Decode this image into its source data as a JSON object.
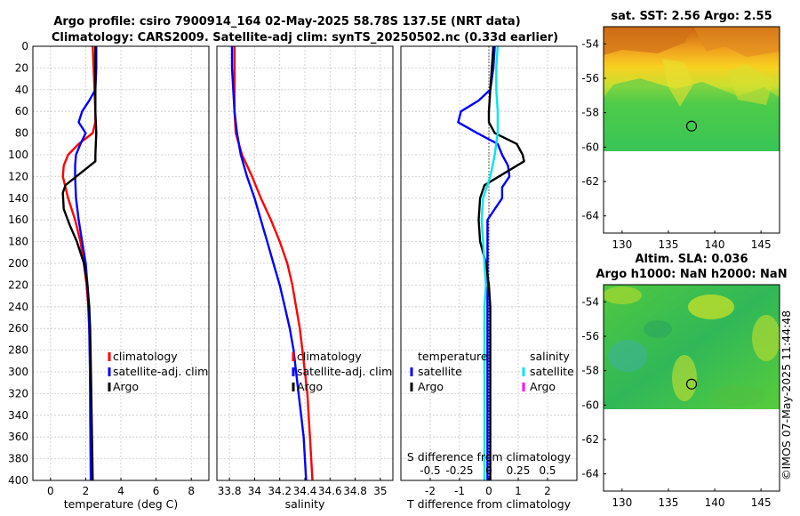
{
  "titles": {
    "line1": "Argo profile: csiro 7900914_164 02-May-2025 58.78S 137.5E (NRT data)",
    "line2": "Climatology: CARS2009. Satellite-adj clim: synTS_20250502.nc (0.33d earlier)",
    "map1": "sat. SST: 2.56 Argo: 2.55",
    "map2_line1": "Altim. SLA: 0.036",
    "map2_line2": "Argo h1000: NaN h2000: NaN",
    "side_text": "©IMOS 07-May-2025 11:44:48"
  },
  "colors": {
    "climatology": "#ff0000",
    "satellite": "#0000ff",
    "argo": "#000000",
    "sat_salinity": "#00e5ee",
    "argo_salinity": "#ff00ff"
  },
  "chart_data": [
    {
      "name": "temperature",
      "type": "line",
      "xlabel": "temperature (deg C)",
      "xlim": [
        -1,
        9
      ],
      "xticks": [
        0,
        2,
        4,
        6,
        8
      ],
      "ylim": [
        400,
        0
      ],
      "yticks": [
        0,
        20,
        40,
        60,
        80,
        100,
        120,
        140,
        160,
        180,
        200,
        220,
        240,
        260,
        280,
        300,
        320,
        340,
        360,
        380,
        400
      ],
      "legend": {
        "position": "lower-right",
        "items": [
          "climatology",
          "satellite-adj. clim",
          "Argo"
        ]
      },
      "series": [
        {
          "name": "climatology",
          "color": "#ff0000",
          "depth": [
            0,
            20,
            40,
            60,
            70,
            80,
            90,
            100,
            110,
            120,
            140,
            160,
            180,
            200,
            220,
            240,
            260,
            280,
            300,
            320,
            340,
            360,
            380,
            400
          ],
          "values": [
            2.4,
            2.45,
            2.5,
            2.55,
            2.55,
            2.4,
            1.6,
            1.0,
            0.75,
            0.7,
            1.0,
            1.4,
            1.7,
            1.9,
            2.05,
            2.15,
            2.2,
            2.25,
            2.28,
            2.3,
            2.32,
            2.34,
            2.36,
            2.38
          ]
        },
        {
          "name": "satellite-adj. clim",
          "color": "#0000ff",
          "depth": [
            0,
            20,
            40,
            50,
            60,
            70,
            80,
            90,
            100,
            110,
            120,
            140,
            160,
            180,
            200,
            220,
            240,
            260,
            280,
            300,
            320,
            340,
            360,
            380,
            400
          ],
          "values": [
            2.6,
            2.6,
            2.55,
            2.2,
            1.8,
            1.6,
            2.0,
            1.7,
            1.45,
            1.4,
            1.4,
            1.45,
            1.6,
            1.8,
            2.0,
            2.1,
            2.15,
            2.2,
            2.22,
            2.24,
            2.25,
            2.26,
            2.27,
            2.28,
            2.29
          ]
        },
        {
          "name": "Argo",
          "color": "#000000",
          "depth": [
            0,
            20,
            40,
            60,
            80,
            100,
            106,
            128,
            135,
            150,
            165,
            180,
            200,
            220,
            240,
            260,
            280,
            300,
            320,
            340,
            360,
            380,
            400
          ],
          "values": [
            2.55,
            2.55,
            2.55,
            2.55,
            2.6,
            2.55,
            2.55,
            0.85,
            0.7,
            0.75,
            1.1,
            1.5,
            1.9,
            2.1,
            2.2,
            2.25,
            2.28,
            2.3,
            2.32,
            2.34,
            2.36,
            2.38,
            2.4
          ]
        }
      ]
    },
    {
      "name": "salinity",
      "type": "line",
      "xlabel": "salinity",
      "xlim": [
        33.7,
        35.1
      ],
      "xticks": [
        33.8,
        34,
        34.2,
        34.4,
        34.6,
        34.8,
        35
      ],
      "xtick_labels": [
        "33.8",
        "34",
        "34.2",
        "34.4",
        "34.6",
        "34.8",
        "35"
      ],
      "ylim": [
        400,
        0
      ],
      "legend": {
        "position": "lower-right",
        "items": [
          "climatology",
          "satellite-adj. clim",
          "Argo"
        ]
      },
      "series": [
        {
          "name": "climatology",
          "color": "#ff0000",
          "depth": [
            0,
            20,
            40,
            60,
            80,
            100,
            120,
            140,
            160,
            180,
            200,
            220,
            240,
            260,
            280,
            300,
            320,
            340,
            360,
            380,
            400
          ],
          "values": [
            33.84,
            33.84,
            33.84,
            33.84,
            33.85,
            33.9,
            33.98,
            34.05,
            34.13,
            34.2,
            34.26,
            34.3,
            34.33,
            34.36,
            34.38,
            34.4,
            34.42,
            34.43,
            34.44,
            34.45,
            34.46
          ]
        },
        {
          "name": "satellite-adj. clim",
          "color": "#0000ff",
          "depth": [
            0,
            20,
            40,
            60,
            80,
            100,
            120,
            140,
            160,
            180,
            200,
            220,
            240,
            260,
            280,
            300,
            320,
            340,
            360,
            380,
            400
          ],
          "values": [
            33.82,
            33.82,
            33.83,
            33.84,
            33.86,
            33.89,
            33.94,
            34.0,
            34.05,
            34.1,
            34.15,
            34.2,
            34.24,
            34.28,
            34.31,
            34.33,
            34.35,
            34.37,
            34.39,
            34.4,
            34.41
          ]
        }
      ]
    },
    {
      "name": "difference",
      "type": "line",
      "xlabel": "T difference from climatology",
      "xlim": [
        -3,
        3
      ],
      "xticks": [
        -2,
        -1,
        0,
        1,
        2
      ],
      "top_label": "S difference from climatology",
      "top_ticks": [
        "-0.5",
        "-0.25",
        "0",
        "0.25",
        "0.5"
      ],
      "top_tick_positions": [
        -2,
        -1,
        0,
        1,
        2
      ],
      "ylim": [
        400,
        0
      ],
      "legend_left": {
        "title": "temperature",
        "items": [
          "satellite",
          "Argo"
        ]
      },
      "legend_right": {
        "title": "salinity",
        "items": [
          "satellite",
          "Argo"
        ]
      },
      "series": [
        {
          "name": "temperature satellite",
          "color": "#0000ff",
          "depth": [
            0,
            20,
            40,
            50,
            60,
            70,
            80,
            90,
            100,
            110,
            120,
            130,
            140,
            150,
            160,
            180,
            200,
            220,
            240,
            260,
            280,
            300,
            320,
            340,
            360,
            380,
            400
          ],
          "values": [
            0.2,
            0.15,
            0.05,
            -0.35,
            -0.95,
            -1.05,
            -0.4,
            0.3,
            0.45,
            0.65,
            0.7,
            0.45,
            0.45,
            0.2,
            -0.05,
            -0.05,
            -0.05,
            -0.05,
            -0.05,
            -0.05,
            -0.05,
            -0.05,
            -0.05,
            -0.05,
            -0.05,
            -0.05,
            -0.05
          ]
        },
        {
          "name": "temperature Argo",
          "color": "#000000",
          "depth": [
            0,
            20,
            40,
            60,
            70,
            80,
            90,
            100,
            106,
            128,
            140,
            160,
            180,
            200,
            220,
            240,
            260,
            280,
            300,
            320,
            340,
            360,
            380,
            400
          ],
          "values": [
            0.15,
            0.1,
            0.05,
            0.0,
            0.0,
            0.2,
            0.95,
            1.15,
            1.2,
            -0.15,
            -0.3,
            -0.35,
            -0.3,
            -0.1,
            0.0,
            0.05,
            0.05,
            0.05,
            0.05,
            0.05,
            0.05,
            0.05,
            0.05,
            0.05
          ]
        },
        {
          "name": "salinity satellite",
          "color": "#00e5ee",
          "depth": [
            0,
            20,
            40,
            60,
            80,
            100,
            120,
            140,
            160,
            180,
            200,
            220,
            240,
            260,
            280,
            300,
            320,
            340,
            360,
            380,
            400
          ],
          "values": [
            0.3,
            0.25,
            0.25,
            0.3,
            0.3,
            0.2,
            0.05,
            -0.2,
            -0.25,
            -0.2,
            -0.15,
            -0.1,
            -0.15,
            -0.15,
            -0.15,
            -0.15,
            -0.15,
            -0.15,
            -0.15,
            -0.15,
            -0.15
          ]
        }
      ]
    },
    {
      "name": "sst_map",
      "type": "heatmap",
      "xlim": [
        128,
        147
      ],
      "ylim": [
        -65,
        -53
      ],
      "xticks": [
        "130",
        "135",
        "140",
        "145"
      ],
      "yticks": [
        "-54",
        "-56",
        "-58",
        "-60",
        "-62",
        "-64"
      ],
      "float_lon": 137.5,
      "float_lat": -58.78
    },
    {
      "name": "sla_map",
      "type": "heatmap",
      "xlim": [
        128,
        147
      ],
      "ylim": [
        -65,
        -53
      ],
      "xticks": [
        "130",
        "135",
        "140",
        "145"
      ],
      "yticks": [
        "-54",
        "-56",
        "-58",
        "-60",
        "-62",
        "-64"
      ],
      "float_lon": 137.5,
      "float_lat": -58.78
    }
  ]
}
